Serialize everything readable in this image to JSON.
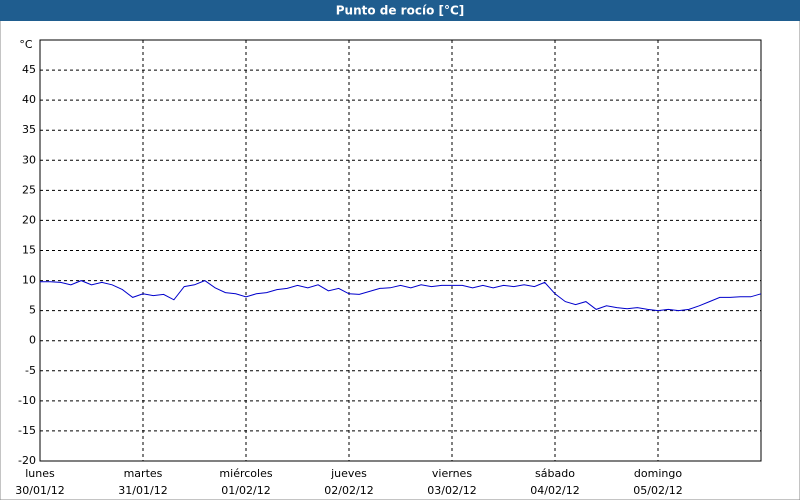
{
  "chart_data": {
    "type": "line",
    "title": "Punto de rocío [°C]",
    "y_label": "°C",
    "x": [
      0,
      0.1,
      0.2,
      0.3,
      0.4,
      0.5,
      0.6,
      0.7,
      0.8,
      0.9,
      1.0,
      1.1,
      1.2,
      1.3,
      1.4,
      1.5,
      1.6,
      1.7,
      1.8,
      1.9,
      2.0,
      2.1,
      2.2,
      2.3,
      2.4,
      2.5,
      2.6,
      2.7,
      2.8,
      2.9,
      3.0,
      3.1,
      3.2,
      3.3,
      3.4,
      3.5,
      3.6,
      3.7,
      3.8,
      3.9,
      4.0,
      4.1,
      4.2,
      4.3,
      4.4,
      4.5,
      4.6,
      4.7,
      4.8,
      4.9,
      5.0,
      5.1,
      5.2,
      5.3,
      5.4,
      5.5,
      5.6,
      5.7,
      5.8,
      5.9,
      6.0,
      6.1,
      6.2,
      6.3,
      6.4,
      6.5,
      6.6,
      6.7,
      6.8,
      6.9,
      7.0
    ],
    "series": [
      {
        "name": "Punto de rocío",
        "color": "#0000cc",
        "values": [
          9.8,
          9.8,
          9.7,
          9.3,
          10,
          9.3,
          9.7,
          9.3,
          8.5,
          7.2,
          7.8,
          7.5,
          7.7,
          6.8,
          9,
          9.3,
          10,
          8.8,
          8,
          7.8,
          7.3,
          7.8,
          8,
          8.5,
          8.7,
          9.2,
          8.8,
          9.3,
          8.3,
          8.7,
          7.8,
          7.7,
          8.2,
          8.7,
          8.8,
          9.2,
          8.8,
          9.3,
          9,
          9.2,
          9.2,
          9.2,
          8.8,
          9.2,
          8.8,
          9.2,
          9,
          9.3,
          9,
          9.7,
          7.8,
          6.5,
          6,
          6.5,
          5.2,
          5.8,
          5.5,
          5.3,
          5.5,
          5.2,
          5,
          5.2,
          5,
          5.2,
          5.8,
          6.5,
          7.2,
          7.2,
          7.3,
          7.3,
          7.8
        ]
      }
    ],
    "xlim": [
      0,
      7
    ],
    "xticks": [
      {
        "value": 0,
        "label": "lunes",
        "date": "30/01/12"
      },
      {
        "value": 1,
        "label": "martes",
        "date": "31/01/12"
      },
      {
        "value": 2,
        "label": "miércoles",
        "date": "01/02/12"
      },
      {
        "value": 3,
        "label": "jueves",
        "date": "02/02/12"
      },
      {
        "value": 4,
        "label": "viernes",
        "date": "03/02/12"
      },
      {
        "value": 5,
        "label": "sábado",
        "date": "04/02/12"
      },
      {
        "value": 6,
        "label": "domingo",
        "date": "05/02/12"
      }
    ],
    "ylim": [
      -20,
      50
    ],
    "yticks": [
      -20,
      -15,
      -10,
      -5,
      0,
      5,
      10,
      15,
      20,
      25,
      30,
      35,
      40,
      45
    ],
    "grid": true
  }
}
